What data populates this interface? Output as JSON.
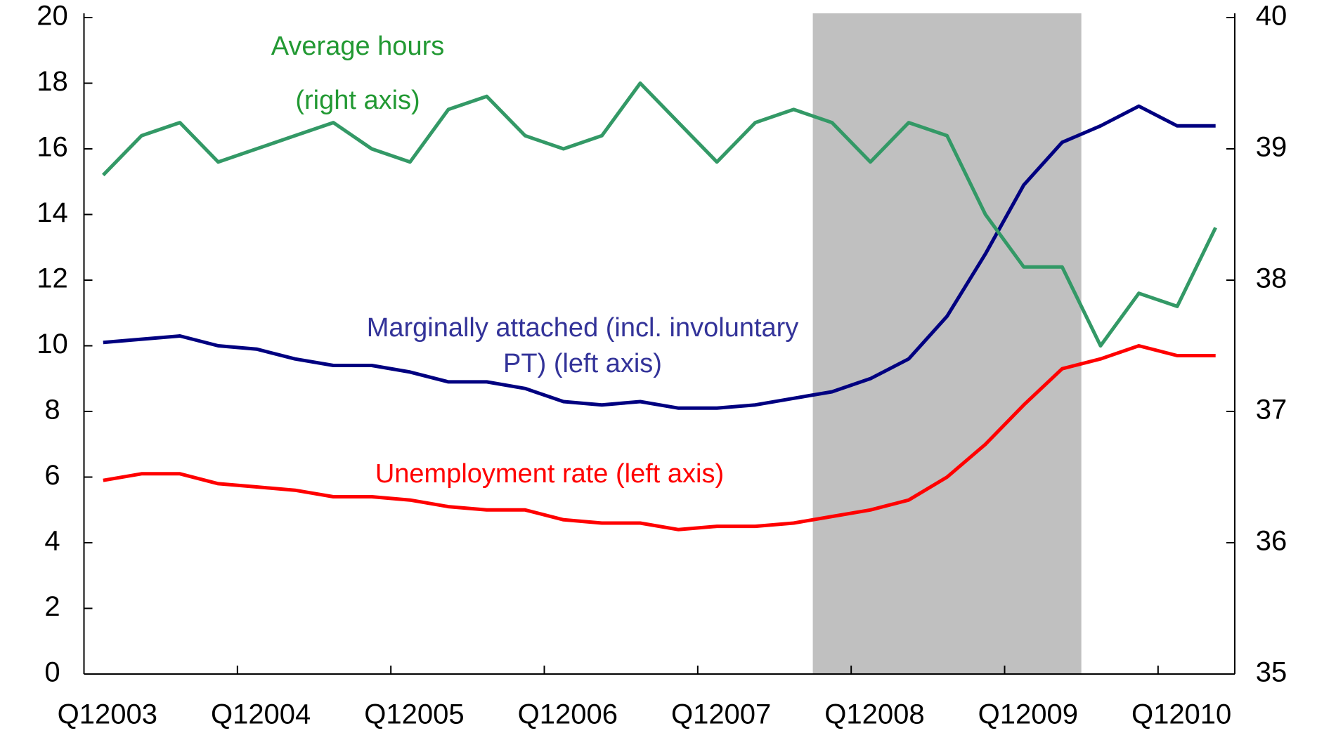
{
  "chart_data": {
    "type": "line",
    "categories": [
      "Q12003",
      null,
      null,
      null,
      "Q12004",
      null,
      null,
      null,
      "Q12005",
      null,
      null,
      null,
      "Q12006",
      null,
      null,
      null,
      "Q12007",
      null,
      null,
      null,
      "Q12008",
      null,
      null,
      null,
      "Q12009",
      null,
      null,
      null,
      "Q12010",
      null
    ],
    "series": [
      {
        "name": "Unemployment rate (left axis)",
        "color": "#ff0000",
        "axis": "y",
        "values": [
          5.9,
          6.1,
          6.1,
          5.8,
          5.7,
          5.6,
          5.4,
          5.4,
          5.3,
          5.1,
          5.0,
          5.0,
          4.7,
          4.6,
          4.6,
          4.4,
          4.5,
          4.5,
          4.6,
          4.8,
          5.0,
          5.3,
          6.0,
          7.0,
          8.2,
          9.3,
          9.6,
          10.0,
          9.7,
          9.7
        ]
      },
      {
        "name": "Marginally attached (incl. involuntary PT) (left axis)",
        "color": "#000080",
        "axis": "y",
        "values": [
          10.1,
          10.2,
          10.3,
          10.0,
          9.9,
          9.6,
          9.4,
          9.4,
          9.2,
          8.9,
          8.9,
          8.7,
          8.3,
          8.2,
          8.3,
          8.1,
          8.1,
          8.2,
          8.4,
          8.6,
          9.0,
          9.6,
          10.9,
          12.8,
          14.9,
          16.2,
          16.7,
          17.3,
          16.7,
          16.7
        ]
      },
      {
        "name": "Average hours (right axis)",
        "color": "#339966",
        "axis": "y2",
        "values": [
          38.8,
          39.1,
          39.2,
          38.9,
          39.0,
          39.1,
          39.2,
          39.0,
          38.9,
          39.3,
          39.4,
          39.1,
          39.0,
          39.1,
          39.5,
          39.2,
          38.9,
          39.2,
          39.3,
          39.2,
          38.9,
          39.2,
          39.1,
          38.5,
          38.1,
          38.1,
          37.5,
          37.9,
          37.8,
          38.4
        ]
      }
    ],
    "annotations": [
      {
        "text": "Average hours",
        "color": "#229933"
      },
      {
        "text": "(right axis)",
        "color": "#229933"
      },
      {
        "text": "Marginally attached (incl. involuntary",
        "color": "#333399"
      },
      {
        "text": "PT) (left axis)",
        "color": "#333399"
      },
      {
        "text": "Unemployment rate (left axis)",
        "color": "#ff0000"
      }
    ],
    "shaded_span": [
      19,
      25
    ],
    "shade_color": "#c0c0c0",
    "ylim": [
      0,
      20
    ],
    "yticks": [
      0,
      2,
      4,
      6,
      8,
      10,
      12,
      14,
      16,
      18,
      20
    ],
    "y2lim": [
      35,
      40
    ],
    "y2ticks": [
      35,
      36,
      37,
      38,
      39,
      40
    ]
  }
}
